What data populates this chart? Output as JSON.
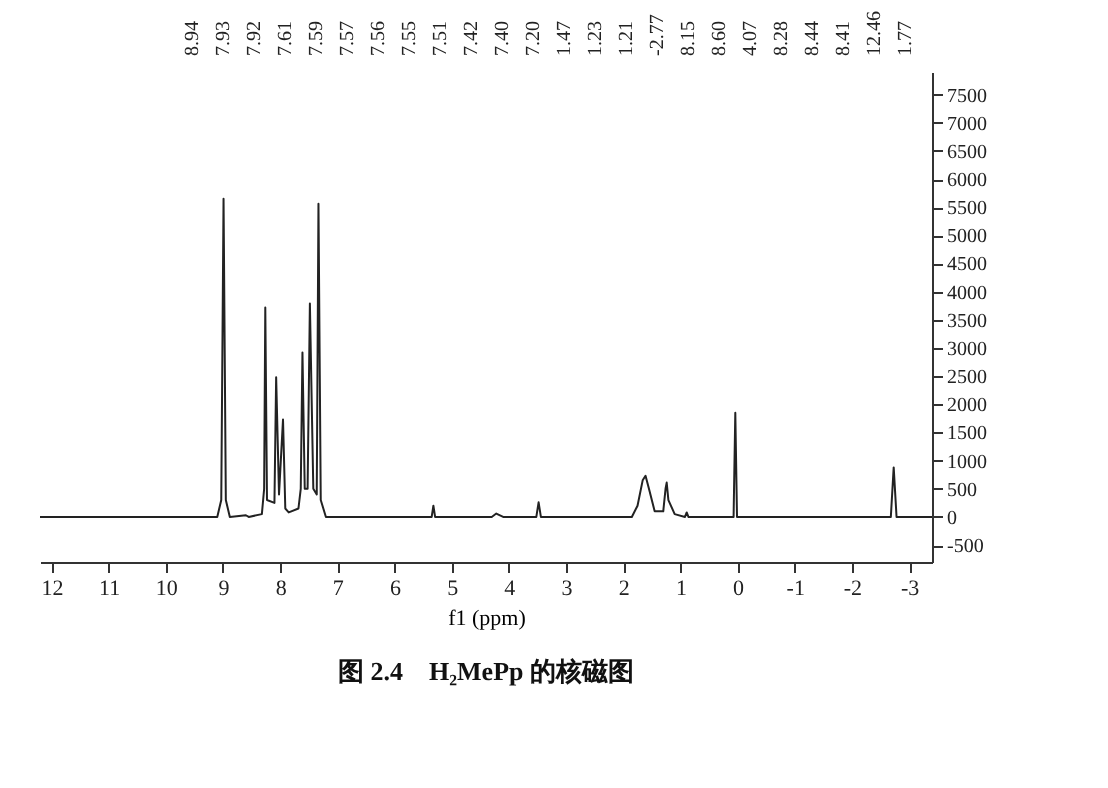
{
  "chart_data": {
    "type": "line",
    "title": "图 2.4　H₂MePp 的核磁图",
    "xlabel": "f1 (ppm)",
    "xlim": [
      12.2,
      -3.4
    ],
    "xticks": [
      12,
      11,
      10,
      9,
      8,
      7,
      6,
      5,
      4,
      3,
      2,
      1,
      0,
      -1,
      -2,
      -3
    ],
    "ylim": [
      -800,
      7900
    ],
    "yticks": [
      -500,
      0,
      500,
      1000,
      1500,
      2000,
      2500,
      3000,
      3500,
      4000,
      4500,
      5000,
      5500,
      6000,
      6500,
      7000,
      7500
    ],
    "grid": false,
    "marker": "none",
    "line_style": "solid",
    "series": [
      {
        "color": "#222222",
        "x": [
          12.2,
          9.1,
          9.03,
          8.99,
          8.95,
          8.88,
          8.6,
          8.55,
          8.32,
          8.28,
          8.26,
          8.23,
          8.1,
          8.07,
          8.02,
          7.95,
          7.91,
          7.85,
          7.68,
          7.64,
          7.61,
          7.57,
          7.52,
          7.48,
          7.42,
          7.36,
          7.33,
          7.29,
          7.2,
          5.35,
          5.32,
          5.29,
          4.3,
          4.22,
          4.1,
          3.52,
          3.48,
          3.44,
          1.85,
          1.75,
          1.66,
          1.61,
          1.55,
          1.45,
          1.3,
          1.26,
          1.24,
          1.21,
          1.1,
          0.92,
          0.89,
          0.86,
          0.07,
          0.04,
          0.01,
          -2.68,
          -2.73,
          -2.78,
          -3.4
        ],
        "values": [
          0,
          0,
          300,
          5650,
          300,
          0,
          30,
          0,
          50,
          500,
          3720,
          300,
          250,
          2480,
          400,
          1730,
          150,
          80,
          150,
          500,
          2920,
          500,
          500,
          3790,
          500,
          400,
          5560,
          300,
          0,
          0,
          200,
          0,
          0,
          60,
          0,
          0,
          260,
          0,
          0,
          200,
          650,
          730,
          500,
          100,
          100,
          500,
          610,
          300,
          50,
          0,
          80,
          0,
          0,
          1850,
          0,
          0,
          880,
          0,
          0
        ]
      }
    ],
    "annotations": [
      "8.94",
      "7.93",
      "7.92",
      "7.61",
      "7.59",
      "7.57",
      "7.56",
      "7.55",
      "7.51",
      "7.42",
      "7.40",
      "7.20",
      "1.47",
      "1.23",
      "1.21",
      "-2.77",
      "8.15",
      "8.60",
      "4.07",
      "8.28",
      "8.44",
      "8.41",
      "12.46",
      "1.77"
    ]
  }
}
